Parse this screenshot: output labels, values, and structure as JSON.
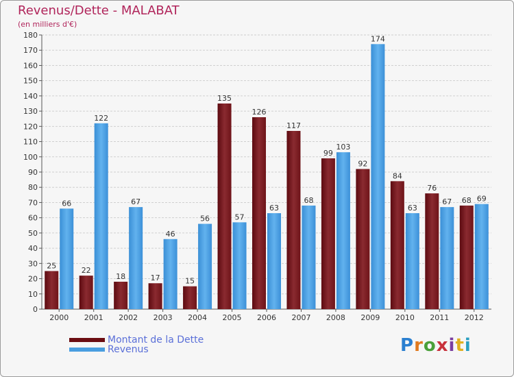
{
  "header": {
    "title": "Revenus/Dette - MALABAT",
    "subtitle": "(en milliers d'€)"
  },
  "brand": {
    "text": "Proxiti",
    "letter_colors": [
      "#2a7fd0",
      "#e07a1f",
      "#4aa03a",
      "#c8323c",
      "#7a3ea0",
      "#e0b020",
      "#2a9fc0"
    ]
  },
  "legend": {
    "items": [
      {
        "label": "Montant de la Dette",
        "color": "#6b0d12"
      },
      {
        "label": "Revenus",
        "color": "#4a9ee0"
      }
    ]
  },
  "chart_data": {
    "type": "bar",
    "categories": [
      "2000",
      "2001",
      "2002",
      "2003",
      "2004",
      "2005",
      "2006",
      "2007",
      "2008",
      "2009",
      "2010",
      "2011",
      "2012"
    ],
    "series": [
      {
        "name": "Montant de la Dette",
        "color": "#7a1f25",
        "values": [
          25,
          22,
          18,
          17,
          15,
          135,
          126,
          117,
          99,
          92,
          84,
          76,
          68
        ]
      },
      {
        "name": "Revenus",
        "color": "#4da3e6",
        "values": [
          66,
          122,
          67,
          46,
          56,
          57,
          63,
          68,
          103,
          174,
          63,
          67,
          69
        ]
      }
    ],
    "ylim": [
      0,
      180
    ],
    "yticks": [
      0,
      10,
      20,
      30,
      40,
      50,
      60,
      70,
      80,
      90,
      100,
      110,
      120,
      130,
      140,
      150,
      160,
      170,
      180
    ],
    "grid": true,
    "legend_position": "bottom-left"
  }
}
